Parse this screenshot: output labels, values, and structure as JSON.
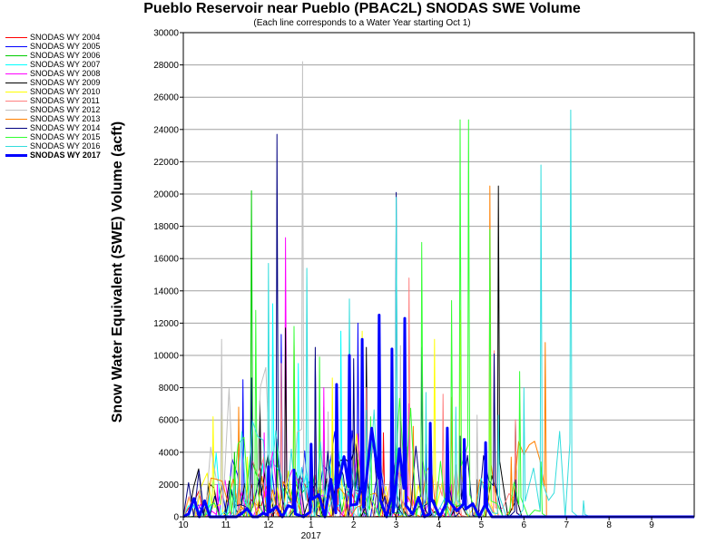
{
  "chart_data": {
    "type": "line",
    "title": "Pueblo Reservoir near Pueblo (PBAC2L) SNODAS SWE Volume",
    "subtitle": "(Each line corresponds to a Water Year starting Oct 1)",
    "ylabel": "Snow Water Equivalent (SWE) Volume (acft)",
    "xlabel": "",
    "x_tick_labels": [
      "10",
      "11",
      "12",
      "1",
      "2",
      "3",
      "4",
      "5",
      "6",
      "7",
      "8",
      "9"
    ],
    "x_year_label": "2017",
    "y_ticks": [
      0,
      2000,
      4000,
      6000,
      8000,
      10000,
      12000,
      14000,
      16000,
      18000,
      20000,
      22000,
      24000,
      26000,
      28000,
      30000
    ],
    "ylim": [
      0,
      30000
    ],
    "xlim_months": [
      0,
      12
    ],
    "grid": "horizontal",
    "legend_position": "left",
    "series": [
      {
        "name": "SNODAS WY 2004",
        "color": "#ff0000",
        "peaks": [
          [
            2.2,
            4800
          ],
          [
            3.6,
            6200
          ],
          [
            4.7,
            5200
          ],
          [
            5.7,
            3400
          ],
          [
            6.4,
            2500
          ]
        ]
      },
      {
        "name": "SNODAS WY 2005",
        "color": "#0000ff",
        "peaks": [
          [
            1.4,
            8500
          ],
          [
            2.3,
            11300
          ],
          [
            3.1,
            9800
          ],
          [
            4.1,
            12000
          ],
          [
            4.9,
            7200
          ],
          [
            5.7,
            4500
          ]
        ]
      },
      {
        "name": "SNODAS WY 2006",
        "color": "#00cc00",
        "peaks": [
          [
            0.3,
            700
          ],
          [
            1.2,
            4000
          ],
          [
            1.6,
            20200
          ],
          [
            2.2,
            4500
          ],
          [
            3.3,
            6800
          ],
          [
            4.6,
            9300
          ],
          [
            5.1,
            5800
          ]
        ]
      },
      {
        "name": "SNODAS WY 2007",
        "color": "#00ffff",
        "peaks": [
          [
            0.6,
            1800
          ],
          [
            2.1,
            13200
          ],
          [
            2.7,
            9500
          ],
          [
            3.7,
            11500
          ],
          [
            4.6,
            6200
          ],
          [
            5.0,
            4200
          ]
        ]
      },
      {
        "name": "SNODAS WY 2008",
        "color": "#ff00ff",
        "peaks": [
          [
            0.8,
            2000
          ],
          [
            1.9,
            5200
          ],
          [
            2.4,
            17300
          ],
          [
            3.3,
            8000
          ],
          [
            4.6,
            12500
          ],
          [
            5.3,
            7000
          ],
          [
            6.3,
            2000
          ]
        ]
      },
      {
        "name": "SNODAS WY 2009",
        "color": "#000000",
        "peaks": [
          [
            1.8,
            7200
          ],
          [
            2.4,
            11700
          ],
          [
            3.5,
            5300
          ],
          [
            4.3,
            10500
          ],
          [
            5.1,
            7400
          ],
          [
            6.9,
            2300
          ],
          [
            7.4,
            20500
          ],
          [
            7.8,
            6000
          ]
        ]
      },
      {
        "name": "SNODAS WY 2010",
        "color": "#ffff00",
        "peaks": [
          [
            0.7,
            6200
          ],
          [
            0.9,
            8100
          ],
          [
            1.5,
            3700
          ],
          [
            2.6,
            8800
          ],
          [
            3.5,
            8600
          ],
          [
            4.2,
            11500
          ],
          [
            5.9,
            11000
          ],
          [
            6.5,
            12800
          ],
          [
            7.2,
            7900
          ]
        ]
      },
      {
        "name": "SNODAS WY 2011",
        "color": "#ff8080",
        "peaks": [
          [
            1.3,
            2900
          ],
          [
            2.3,
            9500
          ],
          [
            3.1,
            6000
          ],
          [
            4.3,
            8000
          ],
          [
            5.3,
            14800
          ],
          [
            6.1,
            7600
          ],
          [
            7.3,
            10300
          ],
          [
            7.8,
            6000
          ]
        ]
      },
      {
        "name": "SNODAS WY 2012",
        "color": "#c0c0c0",
        "peaks": [
          [
            0.9,
            11000
          ],
          [
            2.8,
            28200
          ],
          [
            3.4,
            6500
          ],
          [
            4.2,
            5500
          ],
          [
            5.1,
            10600
          ],
          [
            6.4,
            3200
          ],
          [
            6.9,
            6300
          ]
        ]
      },
      {
        "name": "SNODAS WY 2013",
        "color": "#ff8000",
        "peaks": [
          [
            1.3,
            6800
          ],
          [
            2.6,
            11000
          ],
          [
            3.2,
            6200
          ],
          [
            4.2,
            4300
          ],
          [
            5.4,
            5600
          ],
          [
            6.3,
            7400
          ],
          [
            7.2,
            20500
          ],
          [
            7.7,
            3700
          ],
          [
            8.5,
            10800
          ]
        ]
      },
      {
        "name": "SNODAS WY 2014",
        "color": "#000080",
        "peaks": [
          [
            1.6,
            8600
          ],
          [
            2.2,
            23700
          ],
          [
            3.1,
            10500
          ],
          [
            4.0,
            9800
          ],
          [
            5.0,
            20100
          ],
          [
            5.6,
            10500
          ],
          [
            6.5,
            5000
          ],
          [
            7.3,
            10100
          ],
          [
            7.8,
            2300
          ]
        ]
      },
      {
        "name": "SNODAS WY 2015",
        "color": "#33ff33",
        "peaks": [
          [
            1.1,
            2500
          ],
          [
            1.7,
            12800
          ],
          [
            2.6,
            11800
          ],
          [
            3.2,
            9900
          ],
          [
            4.4,
            6200
          ],
          [
            4.9,
            6000
          ],
          [
            5.6,
            17000
          ],
          [
            6.3,
            13400
          ],
          [
            6.5,
            24600
          ],
          [
            6.7,
            24600
          ],
          [
            7.2,
            17800
          ],
          [
            7.9,
            9000
          ],
          [
            8.4,
            3400
          ]
        ]
      },
      {
        "name": "SNODAS WY 2016",
        "color": "#33dddd",
        "peaks": [
          [
            1.2,
            1900
          ],
          [
            2.0,
            15700
          ],
          [
            2.9,
            15400
          ],
          [
            3.9,
            13500
          ],
          [
            4.3,
            6600
          ],
          [
            5.0,
            19800
          ],
          [
            5.7,
            7700
          ],
          [
            6.4,
            6800
          ],
          [
            7.4,
            6300
          ],
          [
            8.0,
            8000
          ],
          [
            8.4,
            21800
          ],
          [
            9.1,
            25200
          ],
          [
            9.4,
            1000
          ]
        ]
      },
      {
        "name": "SNODAS WY 2017",
        "color": "#0000ff",
        "bold": true,
        "peaks": [
          [
            2.0,
            3100
          ],
          [
            2.6,
            2900
          ],
          [
            3.0,
            4500
          ],
          [
            3.6,
            8200
          ],
          [
            3.9,
            10000
          ],
          [
            4.2,
            11000
          ],
          [
            4.6,
            12500
          ],
          [
            4.9,
            10400
          ],
          [
            5.2,
            12300
          ],
          [
            5.8,
            5800
          ],
          [
            6.2,
            5500
          ],
          [
            6.6,
            4800
          ],
          [
            7.1,
            4600
          ]
        ]
      }
    ]
  }
}
